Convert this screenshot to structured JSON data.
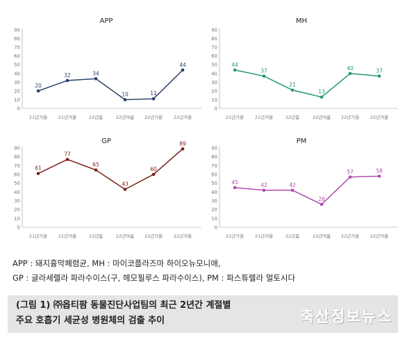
{
  "chart_data": [
    {
      "type": "line",
      "title": "APP",
      "categories": [
        "21년가을",
        "21년겨울",
        "22년봄",
        "22년여름",
        "22년가을",
        "22년겨울"
      ],
      "values": [
        20,
        32,
        34,
        10,
        11,
        44
      ],
      "ylim": [
        0,
        90
      ],
      "yticks": [
        0,
        10,
        20,
        30,
        40,
        50,
        60,
        70,
        80,
        90
      ],
      "color": "#2b3f6a",
      "grid": false
    },
    {
      "type": "line",
      "title": "MH",
      "categories": [
        "21년가을",
        "21년겨울",
        "22년봄",
        "22년여름",
        "22년가을",
        "22년겨울"
      ],
      "values": [
        44,
        37,
        21,
        13,
        40,
        37
      ],
      "ylim": [
        0,
        90
      ],
      "yticks": [
        0,
        10,
        20,
        30,
        40,
        50,
        60,
        70,
        80,
        90
      ],
      "color": "#1f9a6b",
      "grid": false
    },
    {
      "type": "line",
      "title": "GP",
      "categories": [
        "21년가을",
        "21년겨울",
        "22년봄",
        "22년여름",
        "22년가을",
        "22년겨울"
      ],
      "values": [
        61,
        77,
        65,
        43,
        60,
        89
      ],
      "ylim": [
        0,
        90
      ],
      "yticks": [
        0,
        10,
        20,
        30,
        40,
        50,
        60,
        70,
        80,
        90
      ],
      "color": "#7a2018",
      "grid": false
    },
    {
      "type": "line",
      "title": "PM",
      "categories": [
        "21년가을",
        "21년겨울",
        "22년봄",
        "22년여름",
        "22년가을",
        "22년겨울"
      ],
      "values": [
        45,
        42,
        42,
        26,
        57,
        58
      ],
      "ylim": [
        0,
        90
      ],
      "yticks": [
        0,
        10,
        20,
        30,
        40,
        50,
        60,
        70,
        80,
        90
      ],
      "color": "#b04bb0",
      "grid": false
    }
  ],
  "legend": {
    "line1": "APP : 돼지흉막폐렴균, MH : 마이코플라즈마 하이오뉴모니애,",
    "line2": "GP : 글라세렐라 파라수이스(구, 헤모필루스 파라수이스), PM : 파스튜렐라 멀토시다"
  },
  "caption": {
    "line1": "(그림 1) ㈜옵티팜 동물진단사업팀의 최근 2년간 계절별",
    "line2": "주요 호흡기 세균성 병원체의 검출 추이"
  },
  "watermark": "축산정보뉴스"
}
